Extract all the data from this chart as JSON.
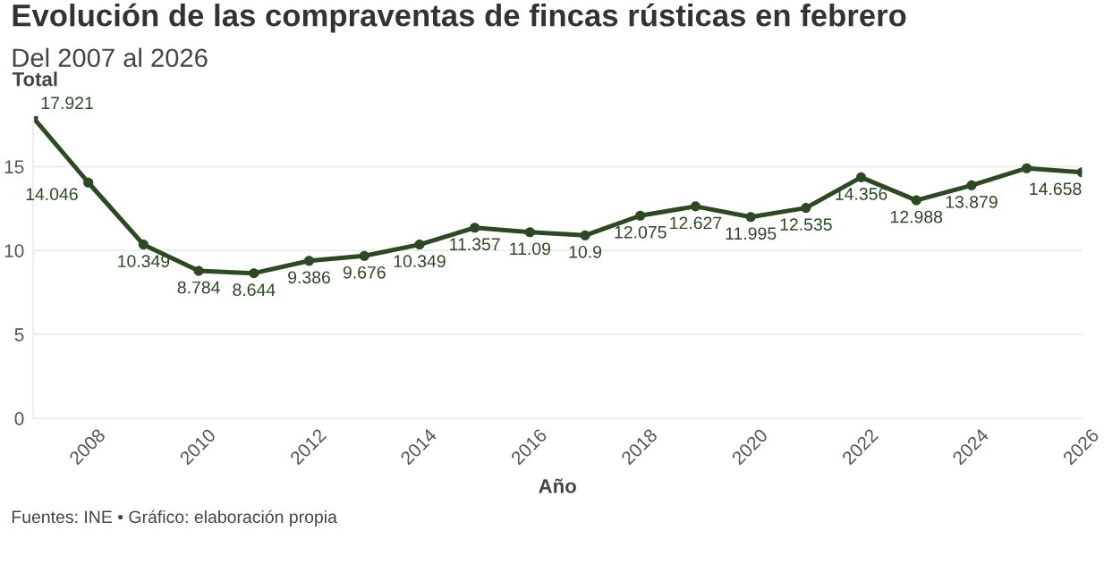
{
  "chart_data": {
    "type": "line",
    "title": "Evolución de las compraventas de fincas rústicas en febrero",
    "subtitle": "Del 2007 al 2026",
    "xlabel": "Año",
    "ylabel": "Total",
    "x": [
      2007,
      2008,
      2009,
      2010,
      2011,
      2012,
      2013,
      2014,
      2015,
      2016,
      2017,
      2018,
      2019,
      2020,
      2021,
      2022,
      2023,
      2024,
      2025,
      2026
    ],
    "series": [
      {
        "color": "#2b4a22",
        "values": [
          17.921,
          14.046,
          10.349,
          8.784,
          8.644,
          9.386,
          9.676,
          10.349,
          11.357,
          11.09,
          10.9,
          12.075,
          12.627,
          11.995,
          12.535,
          14.356,
          12.988,
          13.879,
          14.9,
          14.658
        ],
        "value_labels": [
          "17.921",
          "14.046",
          "10.349",
          "8.784",
          "8.644",
          "9.386",
          "9.676",
          "10.349",
          "11.357",
          "11.09",
          "10.9",
          "12.075",
          "12.627",
          "11.995",
          "12.535",
          "14.356",
          "12.988",
          "13.879",
          null,
          "14.658"
        ]
      }
    ],
    "xlim": [
      2007,
      2026
    ],
    "xticks": [
      2008,
      2010,
      2012,
      2014,
      2016,
      2018,
      2020,
      2022,
      2024,
      2026
    ],
    "ylim": [
      0,
      18
    ],
    "yticks": [
      0,
      5,
      10,
      15
    ],
    "grid": "y",
    "legend": false,
    "marker": "circle",
    "line_style": "solid",
    "annotations": [
      "Fuentes: INE • Gráfico: elaboración propia"
    ]
  }
}
